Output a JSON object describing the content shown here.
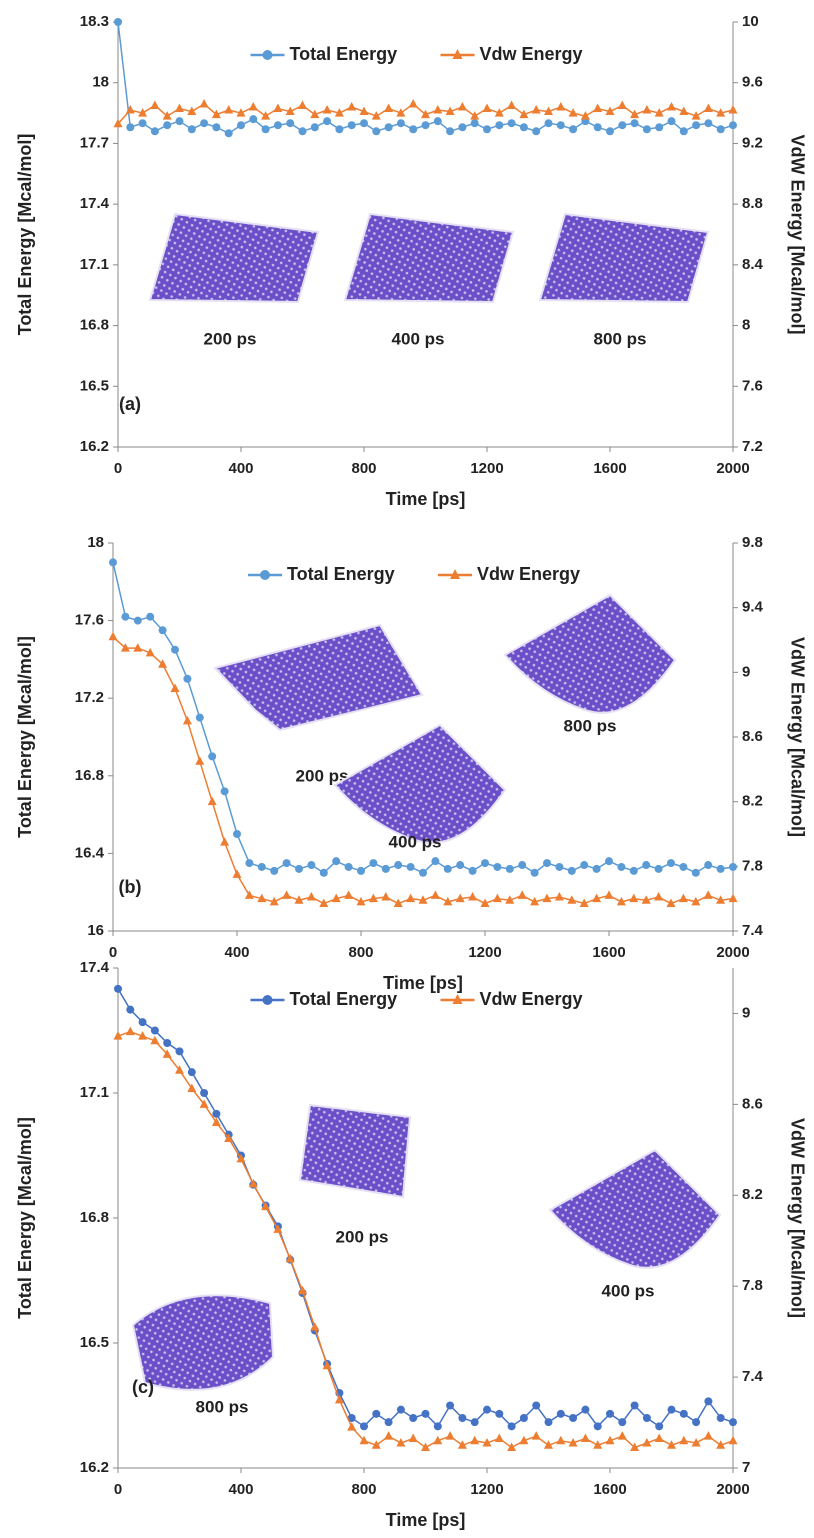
{
  "chart_data": [
    {
      "type": "line",
      "panel_label": "(a)",
      "xlabel": "Time [ps]",
      "ylabel": "Total Energy [Mcal/mol]",
      "y2label": "VdW Energy [Mcal/mol]",
      "legend": "top",
      "xlim": [
        0,
        2000
      ],
      "xticks": [
        0,
        400,
        800,
        1200,
        1600,
        2000
      ],
      "ylim": [
        16.2,
        18.3
      ],
      "yticks": [
        16.2,
        16.5,
        16.8,
        17.1,
        17.4,
        17.7,
        18,
        18.3
      ],
      "y2lim": [
        7.2,
        10
      ],
      "y2ticks": [
        7.2,
        7.6,
        8,
        8.4,
        8.8,
        9.2,
        9.6,
        10
      ],
      "insets": [
        "200 ps",
        "400 ps",
        "800 ps"
      ],
      "x": [
        0,
        40,
        80,
        120,
        160,
        200,
        240,
        280,
        320,
        360,
        400,
        440,
        480,
        520,
        560,
        600,
        640,
        680,
        720,
        760,
        800,
        840,
        880,
        920,
        960,
        1000,
        1040,
        1080,
        1120,
        1160,
        1200,
        1240,
        1280,
        1320,
        1360,
        1400,
        1440,
        1480,
        1520,
        1560,
        1600,
        1640,
        1680,
        1720,
        1760,
        1800,
        1840,
        1880,
        1920,
        1960,
        2000
      ],
      "series": [
        {
          "name": "Total Energy",
          "color": "#5b9bd5",
          "marker": "circle",
          "axis": "y",
          "values": [
            18.3,
            17.78,
            17.8,
            17.76,
            17.79,
            17.81,
            17.77,
            17.8,
            17.78,
            17.75,
            17.79,
            17.82,
            17.77,
            17.79,
            17.8,
            17.76,
            17.78,
            17.81,
            17.77,
            17.79,
            17.8,
            17.76,
            17.78,
            17.8,
            17.77,
            17.79,
            17.81,
            17.76,
            17.78,
            17.8,
            17.77,
            17.79,
            17.8,
            17.78,
            17.76,
            17.8,
            17.79,
            17.77,
            17.81,
            17.78,
            17.76,
            17.79,
            17.8,
            17.77,
            17.78,
            17.81,
            17.76,
            17.79,
            17.8,
            17.77,
            17.79
          ]
        },
        {
          "name": "Vdw Energy",
          "color": "#ed7d31",
          "marker": "triangle",
          "axis": "y2",
          "values": [
            9.33,
            9.42,
            9.4,
            9.45,
            9.38,
            9.43,
            9.41,
            9.46,
            9.39,
            9.42,
            9.4,
            9.44,
            9.38,
            9.43,
            9.41,
            9.45,
            9.39,
            9.42,
            9.4,
            9.44,
            9.41,
            9.38,
            9.43,
            9.4,
            9.46,
            9.39,
            9.42,
            9.41,
            9.44,
            9.38,
            9.43,
            9.4,
            9.45,
            9.39,
            9.42,
            9.41,
            9.44,
            9.4,
            9.38,
            9.43,
            9.41,
            9.45,
            9.39,
            9.42,
            9.4,
            9.44,
            9.41,
            9.38,
            9.43,
            9.4,
            9.42
          ]
        }
      ]
    },
    {
      "type": "line",
      "panel_label": "(b)",
      "xlabel": "Time [ps]",
      "ylabel": "Total Energy [Mcal/mol]",
      "y2label": "VdW Energy [Mcal/mol]",
      "legend": "top",
      "xlim": [
        0,
        2000
      ],
      "xticks": [
        0,
        400,
        800,
        1200,
        1600,
        2000
      ],
      "ylim": [
        16,
        18
      ],
      "yticks": [
        16,
        16.4,
        16.8,
        17.2,
        17.6,
        18
      ],
      "y2lim": [
        7.4,
        9.8
      ],
      "y2ticks": [
        7.4,
        7.8,
        8.2,
        8.6,
        9,
        9.4,
        9.8
      ],
      "insets": [
        "200 ps",
        "800 ps",
        "400 ps"
      ],
      "x": [
        0,
        40,
        80,
        120,
        160,
        200,
        240,
        280,
        320,
        360,
        400,
        440,
        480,
        520,
        560,
        600,
        640,
        680,
        720,
        760,
        800,
        840,
        880,
        920,
        960,
        1000,
        1040,
        1080,
        1120,
        1160,
        1200,
        1240,
        1280,
        1320,
        1360,
        1400,
        1440,
        1480,
        1520,
        1560,
        1600,
        1640,
        1680,
        1720,
        1760,
        1800,
        1840,
        1880,
        1920,
        1960,
        2000
      ],
      "series": [
        {
          "name": "Total Energy",
          "color": "#5b9bd5",
          "marker": "circle",
          "axis": "y",
          "values": [
            17.9,
            17.62,
            17.6,
            17.62,
            17.55,
            17.45,
            17.3,
            17.1,
            16.9,
            16.72,
            16.5,
            16.35,
            16.33,
            16.31,
            16.35,
            16.32,
            16.34,
            16.3,
            16.36,
            16.33,
            16.31,
            16.35,
            16.32,
            16.34,
            16.33,
            16.3,
            16.36,
            16.32,
            16.34,
            16.31,
            16.35,
            16.33,
            16.32,
            16.34,
            16.3,
            16.35,
            16.33,
            16.31,
            16.34,
            16.32,
            16.36,
            16.33,
            16.31,
            16.34,
            16.32,
            16.35,
            16.33,
            16.3,
            16.34,
            16.32,
            16.33
          ]
        },
        {
          "name": "Vdw Energy",
          "color": "#ed7d31",
          "marker": "triangle",
          "axis": "y2",
          "values": [
            9.22,
            9.15,
            9.15,
            9.12,
            9.05,
            8.9,
            8.7,
            8.45,
            8.2,
            7.95,
            7.75,
            7.62,
            7.6,
            7.58,
            7.62,
            7.59,
            7.61,
            7.57,
            7.6,
            7.62,
            7.58,
            7.6,
            7.61,
            7.57,
            7.6,
            7.59,
            7.62,
            7.58,
            7.6,
            7.61,
            7.57,
            7.6,
            7.59,
            7.62,
            7.58,
            7.6,
            7.61,
            7.59,
            7.57,
            7.6,
            7.62,
            7.58,
            7.6,
            7.59,
            7.61,
            7.57,
            7.6,
            7.58,
            7.62,
            7.59,
            7.6
          ]
        }
      ]
    },
    {
      "type": "line",
      "panel_label": "(c)",
      "xlabel": "Time [ps]",
      "ylabel": "Total Energy [Mcal/mol]",
      "y2label": "VdW Energy [Mcal/mol]",
      "legend": "top",
      "xlim": [
        0,
        2000
      ],
      "xticks": [
        0,
        400,
        800,
        1200,
        1600,
        2000
      ],
      "ylim": [
        16.2,
        17.4
      ],
      "yticks": [
        16.2,
        16.5,
        16.8,
        17.1,
        17.4
      ],
      "y2lim": [
        7,
        9.2
      ],
      "y2ticks": [
        7,
        7.4,
        7.8,
        8.2,
        8.6,
        9
      ],
      "insets": [
        "200 ps",
        "400 ps",
        "800 ps"
      ],
      "x": [
        0,
        40,
        80,
        120,
        160,
        200,
        240,
        280,
        320,
        360,
        400,
        440,
        480,
        520,
        560,
        600,
        640,
        680,
        720,
        760,
        800,
        840,
        880,
        920,
        960,
        1000,
        1040,
        1080,
        1120,
        1160,
        1200,
        1240,
        1280,
        1320,
        1360,
        1400,
        1440,
        1480,
        1520,
        1560,
        1600,
        1640,
        1680,
        1720,
        1760,
        1800,
        1840,
        1880,
        1920,
        1960,
        2000
      ],
      "series": [
        {
          "name": "Total Energy",
          "color": "#4472c4",
          "marker": "circle",
          "axis": "y",
          "values": [
            17.35,
            17.3,
            17.27,
            17.25,
            17.22,
            17.2,
            17.15,
            17.1,
            17.05,
            17.0,
            16.95,
            16.88,
            16.83,
            16.78,
            16.7,
            16.62,
            16.53,
            16.45,
            16.38,
            16.32,
            16.3,
            16.33,
            16.31,
            16.34,
            16.32,
            16.33,
            16.3,
            16.35,
            16.32,
            16.31,
            16.34,
            16.33,
            16.3,
            16.32,
            16.35,
            16.31,
            16.33,
            16.32,
            16.34,
            16.3,
            16.33,
            16.31,
            16.35,
            16.32,
            16.3,
            16.34,
            16.33,
            16.31,
            16.36,
            16.32,
            16.31
          ]
        },
        {
          "name": "Vdw Energy",
          "color": "#ed7d31",
          "marker": "triangle",
          "axis": "y2",
          "values": [
            8.9,
            8.92,
            8.9,
            8.88,
            8.82,
            8.75,
            8.67,
            8.6,
            8.52,
            8.45,
            8.36,
            8.25,
            8.15,
            8.05,
            7.92,
            7.78,
            7.62,
            7.45,
            7.3,
            7.18,
            7.12,
            7.1,
            7.14,
            7.11,
            7.13,
            7.09,
            7.12,
            7.14,
            7.1,
            7.12,
            7.11,
            7.13,
            7.09,
            7.12,
            7.14,
            7.1,
            7.12,
            7.11,
            7.13,
            7.1,
            7.12,
            7.14,
            7.09,
            7.11,
            7.13,
            7.1,
            7.12,
            7.11,
            7.14,
            7.1,
            7.12
          ]
        }
      ]
    }
  ]
}
